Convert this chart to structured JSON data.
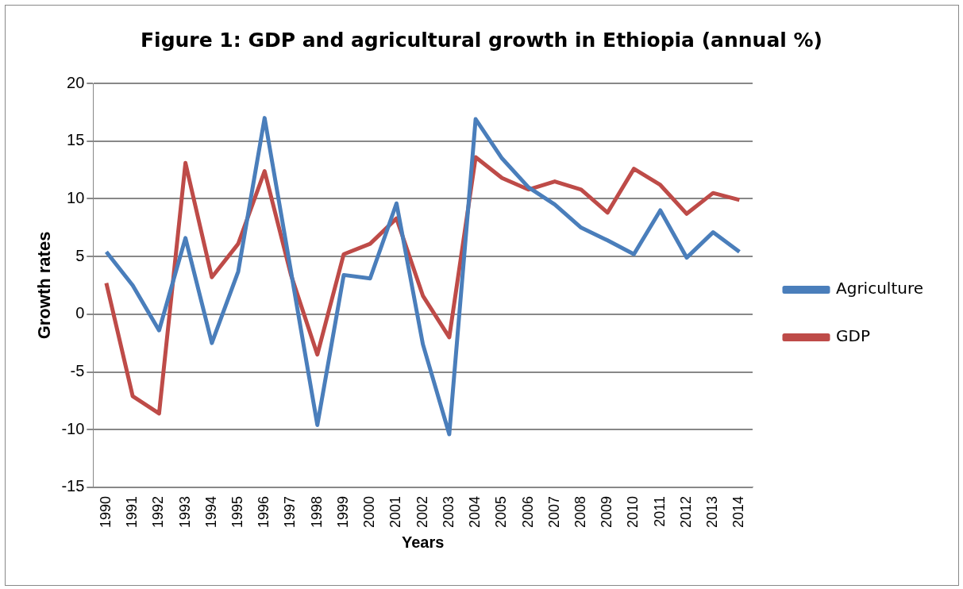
{
  "chart_data": {
    "type": "line",
    "title": "Figure 1: GDP and agricultural growth in Ethiopia (annual %)",
    "xlabel": "Years",
    "ylabel": "Growth rates",
    "categories": [
      "1990",
      "1991",
      "1992",
      "1993",
      "1994",
      "1995",
      "1996",
      "1997",
      "1998",
      "1999",
      "2000",
      "2001",
      "2002",
      "2003",
      "2004",
      "2005",
      "2006",
      "2007",
      "2008",
      "2009",
      "2010",
      "2011",
      "2012",
      "2013",
      "2014"
    ],
    "series": [
      {
        "name": "Agriculture",
        "color": "#4a7ebb",
        "values": [
          5.4,
          2.5,
          -1.4,
          6.6,
          -2.5,
          3.7,
          17.0,
          3.7,
          -9.6,
          3.4,
          3.1,
          9.6,
          -2.6,
          -10.4,
          16.9,
          13.5,
          11.0,
          9.5,
          7.5,
          6.4,
          5.2,
          9.0,
          4.9,
          7.1,
          5.4
        ]
      },
      {
        "name": "GDP",
        "color": "#be4b48",
        "values": [
          2.7,
          -7.1,
          -8.6,
          13.1,
          3.2,
          6.1,
          12.4,
          3.4,
          -3.5,
          5.2,
          6.1,
          8.3,
          1.6,
          -2.0,
          13.6,
          11.8,
          10.8,
          11.5,
          10.8,
          8.8,
          12.6,
          11.2,
          8.7,
          10.5,
          9.9
        ]
      }
    ],
    "ylim": [
      -15,
      20
    ],
    "yticks": [
      -15,
      -10,
      -5,
      0,
      5,
      10,
      15,
      20
    ],
    "grid": "y",
    "legend": "right",
    "marker": "none",
    "line_style": "solid"
  }
}
